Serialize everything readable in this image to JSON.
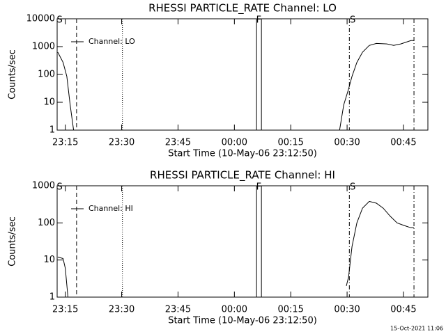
{
  "footer": "15-Oct-2021 11:06",
  "chart_data": [
    {
      "type": "line",
      "title": "RHESSI PARTICLE_RATE Channel: LO",
      "xlabel": "Start Time (10-May-06 23:12:50)",
      "ylabel": "Counts/sec",
      "xlim": [
        -2.17,
        96.5
      ],
      "xticks": [
        {
          "value": 0,
          "label": "23:15"
        },
        {
          "value": 15,
          "label": "23:30"
        },
        {
          "value": 30,
          "label": "23:45"
        },
        {
          "value": 45,
          "label": "00:00"
        },
        {
          "value": 60,
          "label": "00:15"
        },
        {
          "value": 75,
          "label": "00:30"
        },
        {
          "value": 90,
          "label": "00:45"
        }
      ],
      "ylim": [
        1,
        10000
      ],
      "yscale": "log",
      "yticks": [
        1,
        10,
        100,
        1000,
        10000
      ],
      "legend": "upper left",
      "series": [
        {
          "name": "Channel: LO",
          "color": "#000000",
          "x": [
            -2.0,
            -0.6,
            0.4,
            1.3,
            2.2,
            null,
            73.0,
            74.1,
            75.4,
            76.3,
            77.6,
            79.1,
            80.9,
            82.8,
            85.6,
            87.4,
            89.3,
            92.0,
            92.8
          ],
          "values": [
            630,
            270,
            85,
            8,
            1,
            null,
            1,
            8,
            30,
            85,
            270,
            630,
            1100,
            1300,
            1250,
            1100,
            1250,
            1650,
            1650
          ]
        }
      ],
      "markers": [
        {
          "x": 3.0,
          "style": "dashed"
        },
        {
          "x": 15.2,
          "style": "dotted"
        },
        {
          "x": 50.9,
          "style": "solid"
        },
        {
          "x": 52.2,
          "style": "solid"
        },
        {
          "x": 75.6,
          "style": "dashdot"
        },
        {
          "x": 92.8,
          "style": "dashdot"
        }
      ],
      "annotations": [
        {
          "x": -1.5,
          "text": "S"
        },
        {
          "x": 51.5,
          "text": "F"
        },
        {
          "x": 76.5,
          "text": "S"
        }
      ]
    },
    {
      "type": "line",
      "title": "RHESSI PARTICLE_RATE Channel: HI",
      "xlabel": "Start Time (10-May-06 23:12:50)",
      "ylabel": "Counts/sec",
      "xlim": [
        -2.17,
        96.5
      ],
      "xticks": [
        {
          "value": 0,
          "label": "23:15"
        },
        {
          "value": 15,
          "label": "23:30"
        },
        {
          "value": 30,
          "label": "23:45"
        },
        {
          "value": 45,
          "label": "00:00"
        },
        {
          "value": 60,
          "label": "00:15"
        },
        {
          "value": 75,
          "label": "00:30"
        },
        {
          "value": 90,
          "label": "00:45"
        }
      ],
      "ylim": [
        1,
        1000
      ],
      "yscale": "log",
      "yticks": [
        1,
        10,
        100,
        1000
      ],
      "legend": "upper left",
      "series": [
        {
          "name": "Channel: HI",
          "color": "#000000",
          "x": [
            -2.0,
            -0.6,
            0.0,
            0.7,
            null,
            74.8,
            75.4,
            76.3,
            77.6,
            79.1,
            80.9,
            82.8,
            84.6,
            86.5,
            88.3,
            90.2,
            92.0,
            92.8
          ],
          "values": [
            12,
            11,
            6,
            1,
            null,
            2,
            3.5,
            23,
            100,
            250,
            380,
            340,
            250,
            150,
            100,
            85,
            74,
            74
          ]
        }
      ],
      "markers": [
        {
          "x": 3.0,
          "style": "dashed"
        },
        {
          "x": 15.2,
          "style": "dotted"
        },
        {
          "x": 50.9,
          "style": "solid"
        },
        {
          "x": 52.2,
          "style": "solid"
        },
        {
          "x": 75.6,
          "style": "dashdot"
        },
        {
          "x": 92.8,
          "style": "dashdot"
        }
      ],
      "annotations": [
        {
          "x": -1.5,
          "text": "S"
        },
        {
          "x": 51.5,
          "text": "F"
        },
        {
          "x": 76.5,
          "text": "S"
        }
      ]
    }
  ]
}
